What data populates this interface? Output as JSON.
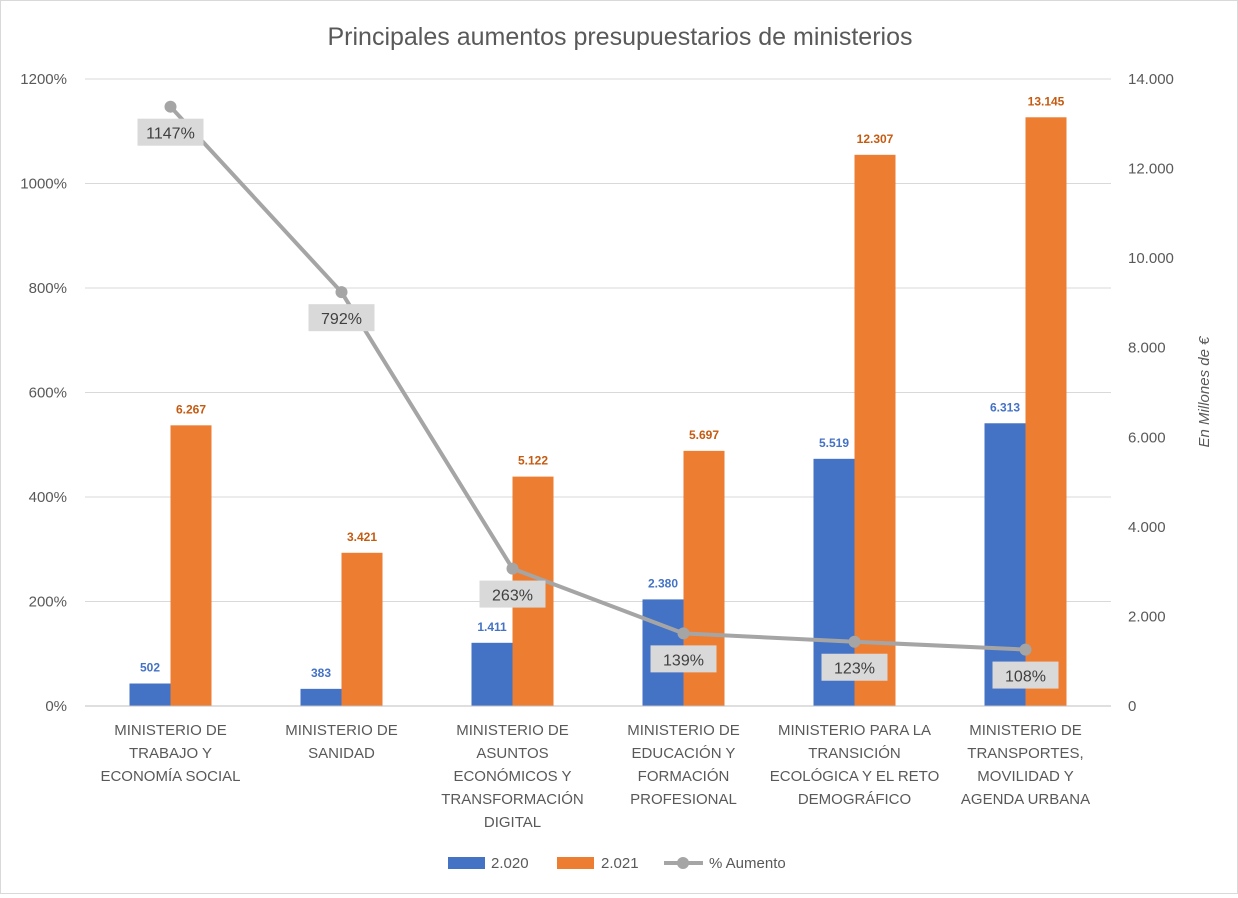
{
  "chart_data": {
    "type": "bar",
    "title": "Principales aumentos presupuestarios de ministerios",
    "categories": [
      [
        "MINISTERIO DE",
        "TRABAJO Y",
        "ECONOMÍA SOCIAL"
      ],
      [
        "MINISTERIO DE",
        "SANIDAD"
      ],
      [
        "MINISTERIO DE",
        "ASUNTOS",
        "ECONÓMICOS Y",
        "TRANSFORMACIÓN",
        "DIGITAL"
      ],
      [
        "MINISTERIO DE",
        "EDUCACIÓN Y",
        "FORMACIÓN",
        "PROFESIONAL"
      ],
      [
        "MINISTERIO PARA LA",
        "TRANSICIÓN",
        "ECOLÓGICA Y EL RETO",
        "DEMOGRÁFICO"
      ],
      [
        "MINISTERIO DE",
        "TRANSPORTES,",
        "MOVILIDAD Y",
        "AGENDA URBANA"
      ]
    ],
    "series": [
      {
        "name": "2.020",
        "axis": "right",
        "color": "#4472c4",
        "values": [
          502,
          383,
          1411,
          2380,
          5519,
          6313
        ],
        "labels": [
          "502",
          "383",
          "1.411",
          "2.380",
          "5.519",
          "6.313"
        ]
      },
      {
        "name": "2.021",
        "axis": "right",
        "color": "#ed7d31",
        "values": [
          6267,
          3421,
          5122,
          5697,
          12307,
          13145
        ],
        "labels": [
          "6.267",
          "3.421",
          "5.122",
          "5.697",
          "12.307",
          "13.145"
        ]
      },
      {
        "name": "% Aumento",
        "type": "line",
        "axis": "left",
        "color": "#a5a5a5",
        "values": [
          1147,
          792,
          263,
          139,
          123,
          108
        ],
        "labels": [
          "1147%",
          "792%",
          "263%",
          "139%",
          "123%",
          "108%"
        ]
      }
    ],
    "y_left": {
      "min": 0,
      "max": 1200,
      "step": 200,
      "ticks": [
        "0%",
        "200%",
        "400%",
        "600%",
        "800%",
        "1000%",
        "1200%"
      ]
    },
    "y_right": {
      "min": 0,
      "max": 14000,
      "step": 2000,
      "ticks": [
        "0",
        "2.000",
        "4.000",
        "6.000",
        "8.000",
        "10.000",
        "12.000",
        "14.000"
      ],
      "label": "En Millones de €"
    },
    "gridlines": true,
    "legend": "bottom"
  }
}
